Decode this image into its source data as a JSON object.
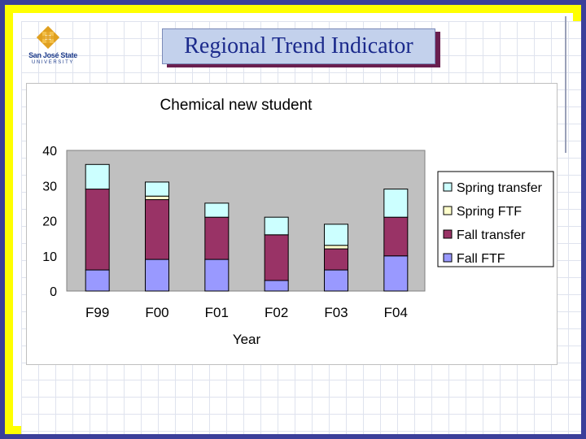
{
  "slide": {
    "title": "Regional Trend Indicator",
    "logo_line1": "San José State",
    "logo_line2": "UNIVERSITY"
  },
  "colors": {
    "frame_border": "#ffff00",
    "outer_background": "#3b3f9a",
    "title_box": "#c3d1ec",
    "title_text": "#1b2a8c",
    "plot_background": "#c0c0c0"
  },
  "chart_data": {
    "type": "bar",
    "stacked": true,
    "title": "Chemical new student",
    "xlabel": "Year",
    "ylabel": "",
    "ylim": [
      0,
      40
    ],
    "yticks": [
      0,
      10,
      20,
      30,
      40
    ],
    "grid": false,
    "legend_position": "right",
    "categories": [
      "F99",
      "F00",
      "F01",
      "F02",
      "F03",
      "F04"
    ],
    "series": [
      {
        "name": "Fall FTF",
        "color": "#9999ff",
        "values": [
          6,
          9,
          9,
          3,
          6,
          10
        ]
      },
      {
        "name": "Fall transfer",
        "color": "#993366",
        "values": [
          23,
          17,
          12,
          13,
          6,
          11
        ]
      },
      {
        "name": "Spring FTF",
        "color": "#ffffcc",
        "values": [
          0,
          1,
          0,
          0,
          1,
          0
        ]
      },
      {
        "name": "Spring transfer",
        "color": "#ccffff",
        "values": [
          7,
          4,
          4,
          5,
          6,
          8
        ]
      }
    ]
  }
}
